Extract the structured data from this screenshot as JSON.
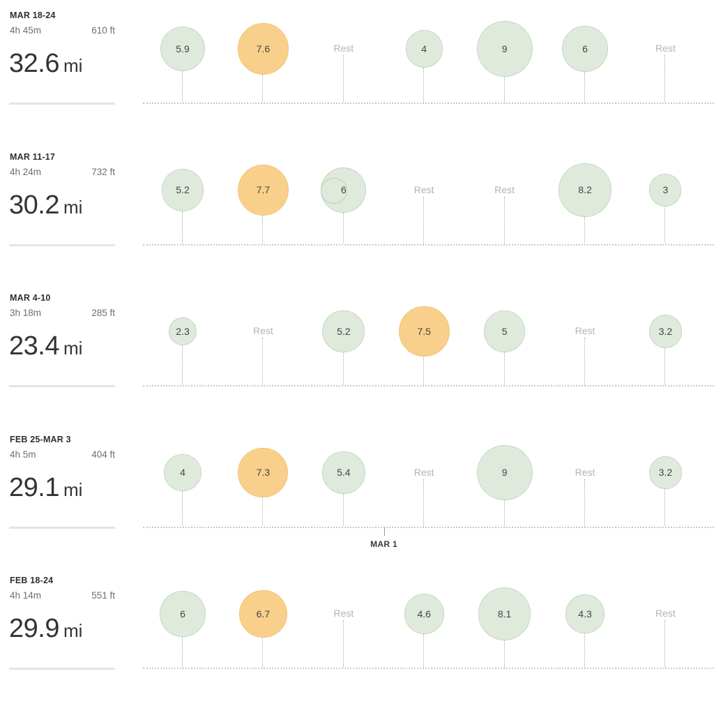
{
  "rest_label": "Rest",
  "colors": {
    "easy": "#dfeadd",
    "long_run": "#f8d08c",
    "rest_text": "#b3b3b3"
  },
  "weeks": [
    {
      "label": "MAR 18-24",
      "time": "4h 45m",
      "elevation": "610 ft",
      "distance": "32.6",
      "unit": "mi",
      "days": [
        {
          "miles": 5.9,
          "label": "5.9",
          "type": "easy"
        },
        {
          "miles": 7.6,
          "label": "7.6",
          "type": "long"
        },
        {
          "rest": true
        },
        {
          "miles": 4,
          "label": "4",
          "type": "easy"
        },
        {
          "miles": 9,
          "label": "9",
          "type": "easy"
        },
        {
          "miles": 6,
          "label": "6",
          "type": "easy"
        },
        {
          "rest": true
        }
      ]
    },
    {
      "label": "MAR 11-17",
      "time": "4h 24m",
      "elevation": "732 ft",
      "distance": "30.2",
      "unit": "mi",
      "days": [
        {
          "miles": 5.2,
          "label": "5.2",
          "type": "easy"
        },
        {
          "miles": 7.7,
          "label": "7.7",
          "type": "long"
        },
        {
          "miles": 6,
          "label": "6",
          "type": "easy",
          "multi": true
        },
        {
          "rest": true
        },
        {
          "rest": true
        },
        {
          "miles": 8.2,
          "label": "8.2",
          "type": "easy"
        },
        {
          "miles": 3,
          "label": "3",
          "type": "easy"
        }
      ]
    },
    {
      "label": "MAR 4-10",
      "time": "3h 18m",
      "elevation": "285 ft",
      "distance": "23.4",
      "unit": "mi",
      "days": [
        {
          "miles": 2.3,
          "label": "2.3",
          "type": "easy",
          "dotted": true
        },
        {
          "rest": true
        },
        {
          "miles": 5.2,
          "label": "5.2",
          "type": "easy"
        },
        {
          "miles": 7.5,
          "label": "7.5",
          "type": "long"
        },
        {
          "miles": 5,
          "label": "5",
          "type": "easy"
        },
        {
          "rest": true
        },
        {
          "miles": 3.2,
          "label": "3.2",
          "type": "easy"
        }
      ]
    },
    {
      "label": "FEB 25-MAR 3",
      "time": "4h 5m",
      "elevation": "404 ft",
      "distance": "29.1",
      "unit": "mi",
      "month_marker": {
        "label": "MAR 1",
        "day_index": 3
      },
      "days": [
        {
          "miles": 4,
          "label": "4",
          "type": "easy"
        },
        {
          "miles": 7.3,
          "label": "7.3",
          "type": "long"
        },
        {
          "miles": 5.4,
          "label": "5.4",
          "type": "easy"
        },
        {
          "rest": true
        },
        {
          "miles": 9,
          "label": "9",
          "type": "easy"
        },
        {
          "rest": true
        },
        {
          "miles": 3.2,
          "label": "3.2",
          "type": "easy"
        }
      ]
    },
    {
      "label": "FEB 18-24",
      "time": "4h 14m",
      "elevation": "551 ft",
      "distance": "29.9",
      "unit": "mi",
      "days": [
        {
          "miles": 6,
          "label": "6",
          "type": "easy"
        },
        {
          "miles": 6.7,
          "label": "6.7",
          "type": "long"
        },
        {
          "rest": true
        },
        {
          "miles": 4.6,
          "label": "4.6",
          "type": "easy"
        },
        {
          "miles": 8.1,
          "label": "8.1",
          "type": "easy"
        },
        {
          "miles": 4.3,
          "label": "4.3",
          "type": "easy"
        },
        {
          "rest": true
        }
      ]
    }
  ]
}
